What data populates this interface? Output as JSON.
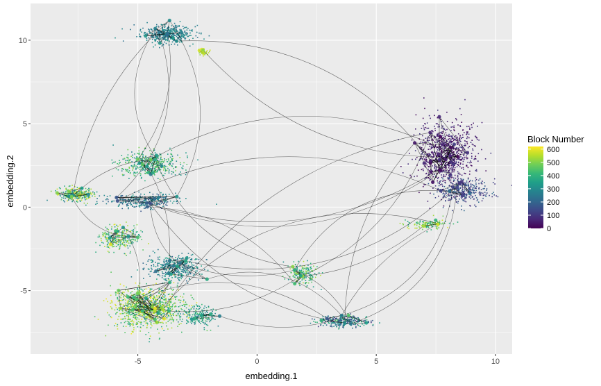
{
  "chart_data": {
    "type": "scatter",
    "title": "",
    "xlabel": "embedding.1",
    "ylabel": "embedding.2",
    "xlim": [
      -9.5,
      10.7
    ],
    "ylim": [
      -8.8,
      12.2
    ],
    "x_ticks": [
      -5,
      0,
      5,
      10
    ],
    "y_ticks": [
      -5,
      0,
      5,
      10
    ],
    "x_tick_labels": [
      "-5",
      "0",
      "5",
      "10"
    ],
    "y_tick_labels": [
      "-5",
      "0",
      "5",
      "10"
    ],
    "grid": true,
    "background": "#ebebeb",
    "legend": {
      "title": "Block Number",
      "placement": "right",
      "type": "colorbar",
      "range": [
        0,
        620
      ],
      "breaks": [
        0,
        100,
        200,
        300,
        400,
        500,
        600
      ],
      "break_labels": [
        "0",
        "100",
        "200",
        "300",
        "400",
        "500",
        "600"
      ],
      "palette": [
        "#440154",
        "#482878",
        "#3e4989",
        "#31688e",
        "#26828e",
        "#1f9e89",
        "#35b779",
        "#6ece58",
        "#b5de2b",
        "#fde725"
      ]
    },
    "clusters": [
      {
        "x": -3.8,
        "y": 10.4,
        "sx": 0.9,
        "sy": 0.45,
        "block_min": 220,
        "block_max": 330,
        "n": 420
      },
      {
        "x": -2.3,
        "y": 9.3,
        "sx": 0.2,
        "sy": 0.2,
        "block_min": 500,
        "block_max": 600,
        "n": 40
      },
      {
        "x": 7.9,
        "y": 3.2,
        "sx": 1.0,
        "sy": 1.6,
        "block_min": 0,
        "block_max": 110,
        "n": 900
      },
      {
        "x": 8.6,
        "y": 1.0,
        "sx": 0.9,
        "sy": 0.7,
        "block_min": 80,
        "block_max": 220,
        "n": 320
      },
      {
        "x": 7.2,
        "y": -1.0,
        "sx": 0.8,
        "sy": 0.25,
        "block_min": 350,
        "block_max": 600,
        "n": 110
      },
      {
        "x": -7.6,
        "y": 0.8,
        "sx": 0.6,
        "sy": 0.35,
        "block_min": 250,
        "block_max": 620,
        "n": 280
      },
      {
        "x": -4.5,
        "y": 2.6,
        "sx": 1.1,
        "sy": 0.6,
        "block_min": 250,
        "block_max": 520,
        "n": 420
      },
      {
        "x": -4.8,
        "y": 0.4,
        "sx": 1.2,
        "sy": 0.35,
        "block_min": 150,
        "block_max": 350,
        "n": 300
      },
      {
        "x": -5.8,
        "y": -1.8,
        "sx": 0.7,
        "sy": 0.7,
        "block_min": 300,
        "block_max": 600,
        "n": 260
      },
      {
        "x": -3.5,
        "y": -3.6,
        "sx": 0.9,
        "sy": 0.6,
        "block_min": 200,
        "block_max": 380,
        "n": 380
      },
      {
        "x": -4.6,
        "y": -6.0,
        "sx": 1.3,
        "sy": 1.0,
        "block_min": 350,
        "block_max": 620,
        "n": 950
      },
      {
        "x": -2.5,
        "y": -6.5,
        "sx": 0.6,
        "sy": 0.5,
        "block_min": 250,
        "block_max": 450,
        "n": 180
      },
      {
        "x": 1.9,
        "y": -4.0,
        "sx": 0.5,
        "sy": 0.5,
        "block_min": 300,
        "block_max": 560,
        "n": 180
      },
      {
        "x": 3.6,
        "y": -6.8,
        "sx": 0.9,
        "sy": 0.3,
        "block_min": 80,
        "block_max": 450,
        "n": 260
      }
    ]
  }
}
